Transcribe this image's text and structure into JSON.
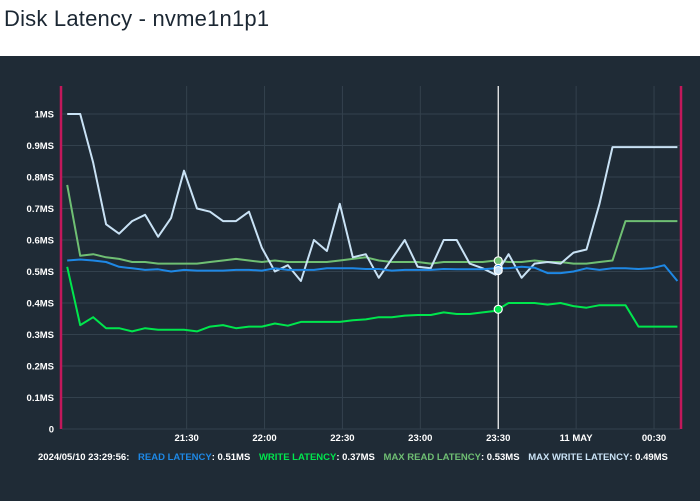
{
  "page": {
    "title": "Disk Latency - nvme1n1p1"
  },
  "colors": {
    "background": "#1f2b36",
    "grid": "#33414d",
    "axis_text": "#ffffff",
    "edge_marker": "#c2185b",
    "read": "#1e88e5",
    "write": "#00e64d",
    "max_read": "#6fbf73",
    "max_write": "#c9e2f5",
    "cursor": "#ffffff"
  },
  "legend": {
    "timestamp": "2024/05/10 23:29:56:",
    "read_label": "READ LATENCY",
    "read_value": ": 0.51MS",
    "write_label": "WRITE LATENCY",
    "write_value": ": 0.37MS",
    "max_read_label": "MAX READ LATENCY",
    "max_read_value": ": 0.53MS",
    "max_write_label": "MAX WRITE LATENCY",
    "max_write_value": ": 0.49MS"
  },
  "chart_data": {
    "type": "line",
    "title": "Disk Latency - nvme1n1p1",
    "xlabel": "",
    "ylabel": "",
    "x_unit": "minutes after 21:00 on 2024/05/10",
    "xlim": [
      -18,
      220
    ],
    "ylim": [
      0,
      1.0
    ],
    "yticks": [
      0,
      0.1,
      0.2,
      0.3,
      0.4,
      0.5,
      0.6,
      0.7,
      0.8,
      0.9,
      1.0
    ],
    "ytick_labels": [
      "0",
      "0.1MS",
      "0.2MS",
      "0.3MS",
      "0.4MS",
      "0.5MS",
      "0.6MS",
      "0.7MS",
      "0.8MS",
      "0.9MS",
      "1MS"
    ],
    "xticks": [
      30,
      60,
      90,
      120,
      150,
      180,
      210
    ],
    "xtick_labels": [
      "21:30",
      "22:00",
      "22:30",
      "23:00",
      "23:30",
      "11 MAY",
      "00:30"
    ],
    "cursor_x": 150,
    "grid": true,
    "x": [
      -16,
      -11,
      -6,
      -1,
      4,
      9,
      14,
      19,
      24,
      29,
      34,
      39,
      44,
      49,
      54,
      59,
      64,
      69,
      74,
      79,
      84,
      89,
      94,
      99,
      104,
      109,
      114,
      119,
      124,
      129,
      134,
      139,
      144,
      149,
      154,
      159,
      164,
      169,
      174,
      179,
      184,
      189,
      194,
      199,
      204,
      209,
      214,
      219
    ],
    "series": [
      {
        "name": "READ LATENCY",
        "values": [
          0.535,
          0.538,
          0.535,
          0.53,
          0.515,
          0.51,
          0.505,
          0.507,
          0.5,
          0.505,
          0.503,
          0.503,
          0.503,
          0.505,
          0.505,
          0.503,
          0.51,
          0.505,
          0.505,
          0.505,
          0.51,
          0.51,
          0.51,
          0.508,
          0.508,
          0.503,
          0.505,
          0.505,
          0.505,
          0.508,
          0.507,
          0.507,
          0.507,
          0.51,
          0.51,
          0.515,
          0.512,
          0.495,
          0.495,
          0.5,
          0.51,
          0.505,
          0.51,
          0.51,
          0.508,
          0.51,
          0.52,
          0.47
        ]
      },
      {
        "name": "WRITE LATENCY",
        "values": [
          0.515,
          0.33,
          0.355,
          0.32,
          0.32,
          0.31,
          0.32,
          0.315,
          0.315,
          0.315,
          0.31,
          0.325,
          0.33,
          0.32,
          0.325,
          0.325,
          0.335,
          0.328,
          0.34,
          0.34,
          0.34,
          0.34,
          0.345,
          0.348,
          0.355,
          0.355,
          0.36,
          0.362,
          0.362,
          0.37,
          0.365,
          0.365,
          0.37,
          0.375,
          0.4,
          0.4,
          0.4,
          0.395,
          0.4,
          0.39,
          0.385,
          0.393,
          0.393,
          0.393,
          0.325,
          0.325,
          0.325,
          0.325
        ]
      },
      {
        "name": "MAX READ LATENCY",
        "values": [
          0.775,
          0.55,
          0.555,
          0.545,
          0.54,
          0.53,
          0.53,
          0.525,
          0.525,
          0.525,
          0.525,
          0.53,
          0.535,
          0.54,
          0.535,
          0.53,
          0.535,
          0.53,
          0.53,
          0.53,
          0.53,
          0.535,
          0.54,
          0.545,
          0.535,
          0.53,
          0.53,
          0.53,
          0.525,
          0.53,
          0.53,
          0.53,
          0.53,
          0.535,
          0.53,
          0.53,
          0.535,
          0.53,
          0.53,
          0.525,
          0.525,
          0.53,
          0.535,
          0.66,
          0.66,
          0.66,
          0.66,
          0.66
        ]
      },
      {
        "name": "MAX WRITE LATENCY",
        "values": [
          1.0,
          1.0,
          0.845,
          0.65,
          0.62,
          0.66,
          0.68,
          0.61,
          0.67,
          0.82,
          0.7,
          0.69,
          0.66,
          0.66,
          0.69,
          0.575,
          0.5,
          0.52,
          0.47,
          0.6,
          0.565,
          0.715,
          0.545,
          0.555,
          0.48,
          0.54,
          0.6,
          0.515,
          0.51,
          0.6,
          0.6,
          0.525,
          0.51,
          0.49,
          0.555,
          0.48,
          0.525,
          0.53,
          0.525,
          0.56,
          0.57,
          0.715,
          0.895,
          0.895,
          0.895,
          0.895,
          0.895,
          0.895
        ]
      }
    ]
  }
}
